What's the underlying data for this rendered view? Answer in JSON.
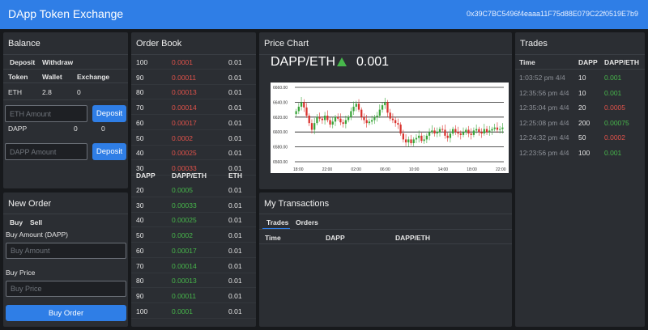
{
  "app": {
    "title": "DApp Token Exchange",
    "account": "0x39C7BC5496f4eaaa11F75d88E079C22f0519E7b9"
  },
  "balance": {
    "title": "Balance",
    "tabs": [
      "Deposit",
      "Withdraw"
    ],
    "headers": [
      "Token",
      "Wallet",
      "Exchange"
    ],
    "eth": {
      "token": "ETH",
      "wallet": "2.8",
      "exchange": "0"
    },
    "eth_input_placeholder": "ETH Amount",
    "deposit_label": "Deposit",
    "dapp": {
      "token": "DAPP",
      "wallet": "0",
      "exchange": "0"
    },
    "dapp_input_placeholder": "DAPP Amount"
  },
  "new_order": {
    "title": "New Order",
    "tabs": [
      "Buy",
      "Sell"
    ],
    "amount_label": "Buy Amount (DAPP)",
    "amount_placeholder": "Buy Amount",
    "price_label": "Buy Price",
    "price_placeholder": "Buy Price",
    "submit_label": "Buy Order"
  },
  "order_book": {
    "title": "Order Book",
    "sell_rows": [
      [
        "100",
        "0.0001",
        "0.01"
      ],
      [
        "90",
        "0.00011",
        "0.01"
      ],
      [
        "80",
        "0.00013",
        "0.01"
      ],
      [
        "70",
        "0.00014",
        "0.01"
      ],
      [
        "60",
        "0.00017",
        "0.01"
      ],
      [
        "50",
        "0.0002",
        "0.01"
      ],
      [
        "40",
        "0.00025",
        "0.01"
      ],
      [
        "30",
        "0.00033",
        "0.01"
      ]
    ],
    "headers": [
      "DAPP",
      "DAPP/ETH",
      "ETH"
    ],
    "buy_rows": [
      [
        "20",
        "0.0005",
        "0.01"
      ],
      [
        "30",
        "0.00033",
        "0.01"
      ],
      [
        "40",
        "0.00025",
        "0.01"
      ],
      [
        "50",
        "0.0002",
        "0.01"
      ],
      [
        "60",
        "0.00017",
        "0.01"
      ],
      [
        "70",
        "0.00014",
        "0.01"
      ],
      [
        "80",
        "0.00013",
        "0.01"
      ],
      [
        "90",
        "0.00011",
        "0.01"
      ],
      [
        "100",
        "0.0001",
        "0.01"
      ]
    ]
  },
  "price_chart": {
    "title": "Price Chart",
    "pair": "DAPP/ETH",
    "last_price": "0.001",
    "arrow_color": "#47b74b"
  },
  "chart_data": {
    "type": "candlestick",
    "y_ticks": [
      "6660.00",
      "6640.00",
      "6620.00",
      "6600.00",
      "6580.00",
      "6560.00"
    ],
    "x_ticks": [
      "18:00",
      "22:00",
      "02:00",
      "06:00",
      "10:00",
      "14:00",
      "18:00",
      "22:00"
    ],
    "ylim": [
      6560,
      6660
    ],
    "close_series": [
      6628,
      6634,
      6640,
      6633,
      6622,
      6612,
      6603,
      6612,
      6620,
      6618,
      6616,
      6622,
      6616,
      6610,
      6614,
      6620,
      6618,
      6613,
      6611,
      6616,
      6620,
      6628,
      6634,
      6638,
      6630,
      6620,
      6616,
      6612,
      6614,
      6616,
      6620,
      6622,
      6630,
      6636,
      6640,
      6626,
      6618,
      6616,
      6612,
      6610,
      6598,
      6590,
      6586,
      6590,
      6585,
      6590,
      6592,
      6595,
      6588,
      6590,
      6595,
      6600,
      6602,
      6598,
      6600,
      6604,
      6603,
      6595,
      6592,
      6598,
      6604,
      6600,
      6598,
      6596,
      6600,
      6603,
      6598,
      6596,
      6602,
      6604,
      6600,
      6598,
      6604,
      6600,
      6602,
      6604,
      6606,
      6603,
      6604,
      6606
    ],
    "grid": true
  },
  "my_transactions": {
    "title": "My Transactions",
    "tabs": [
      "Trades",
      "Orders"
    ],
    "headers": [
      "Time",
      "DAPP",
      "DAPP/ETH"
    ]
  },
  "trades": {
    "title": "Trades",
    "headers": [
      "Time",
      "DAPP",
      "DAPP/ETH"
    ],
    "rows": [
      {
        "time": "1:03:52 pm 4/4",
        "dapp": "10",
        "price": "0.001",
        "side": "buy"
      },
      {
        "time": "12:35:56 pm 4/4",
        "dapp": "10",
        "price": "0.001",
        "side": "buy"
      },
      {
        "time": "12:35:04 pm 4/4",
        "dapp": "20",
        "price": "0.0005",
        "side": "sell"
      },
      {
        "time": "12:25:08 pm 4/4",
        "dapp": "200",
        "price": "0.00075",
        "side": "buy"
      },
      {
        "time": "12:24:32 pm 4/4",
        "dapp": "50",
        "price": "0.0002",
        "side": "sell"
      },
      {
        "time": "12:23:56 pm 4/4",
        "dapp": "100",
        "price": "0.001",
        "side": "buy"
      }
    ]
  }
}
